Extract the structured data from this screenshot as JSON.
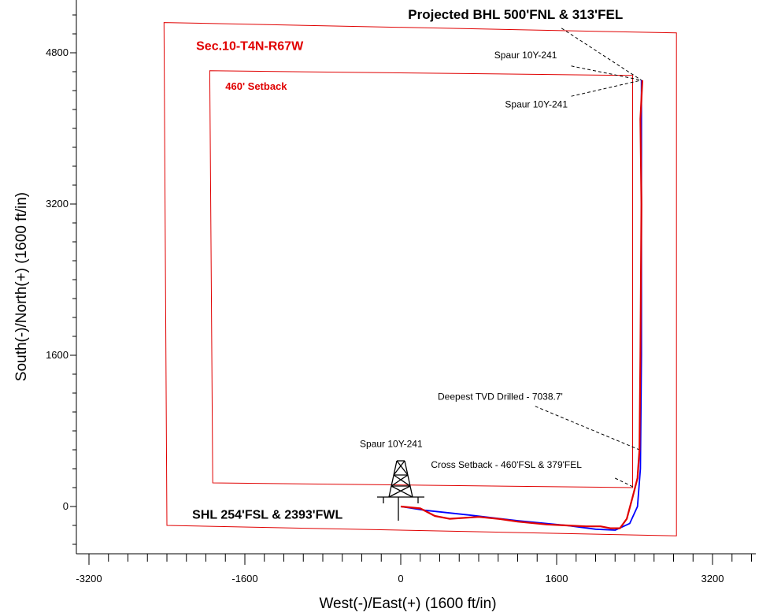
{
  "chart_data": {
    "type": "line",
    "title": "",
    "xlabel": "West(-)/East(+) (1600 ft/in)",
    "ylabel": "South(-)/North(+) (1600 ft/in)",
    "xlim": [
      -3300,
      3650
    ],
    "ylim": [
      -530,
      5350
    ],
    "x_ticks": [
      -3200,
      -1600,
      0,
      1600,
      3200
    ],
    "y_ticks": [
      0,
      1600,
      3200,
      4800
    ],
    "x_tick_labels": [
      "-3200",
      "-1600",
      "0",
      "1600",
      "3200"
    ],
    "y_tick_labels": [
      "0",
      "1600",
      "3200",
      "4800"
    ],
    "grid": false,
    "colors": {
      "plan": "#0000ff",
      "actual": "#e00000",
      "boundary": "#e00000",
      "text": "#000000"
    },
    "section_boundary": [
      [
        -2430,
        5120
      ],
      [
        2830,
        5010
      ],
      [
        2830,
        -310
      ],
      [
        -2400,
        -200
      ]
    ],
    "setback_boundary": [
      [
        -1960,
        4610
      ],
      [
        2380,
        4560
      ],
      [
        2380,
        200
      ],
      [
        -1930,
        250
      ]
    ],
    "series": [
      {
        "key": "plan",
        "values": [
          [
            0,
            0
          ],
          [
            250,
            -40
          ],
          [
            700,
            -90
          ],
          [
            1200,
            -150
          ],
          [
            1700,
            -200
          ],
          [
            2000,
            -240
          ],
          [
            2200,
            -250
          ],
          [
            2350,
            -180
          ],
          [
            2430,
            0
          ],
          [
            2460,
            400
          ],
          [
            2470,
            1600
          ],
          [
            2470,
            3200
          ],
          [
            2470,
            4510
          ]
        ]
      },
      {
        "key": "actual",
        "values": [
          [
            0,
            0
          ],
          [
            200,
            -20
          ],
          [
            350,
            -100
          ],
          [
            500,
            -130
          ],
          [
            800,
            -110
          ],
          [
            1000,
            -130
          ],
          [
            1200,
            -160
          ],
          [
            1500,
            -190
          ],
          [
            1700,
            -200
          ],
          [
            1900,
            -210
          ],
          [
            2050,
            -210
          ],
          [
            2150,
            -230
          ],
          [
            2250,
            -230
          ],
          [
            2320,
            -130
          ],
          [
            2380,
            100
          ],
          [
            2430,
            300
          ],
          [
            2450,
            600
          ],
          [
            2460,
            1600
          ],
          [
            2470,
            3200
          ],
          [
            2460,
            4100
          ],
          [
            2480,
            4510
          ]
        ]
      }
    ],
    "rig": {
      "x": 0,
      "y": 0
    },
    "annotations": [
      {
        "key": "bhl",
        "text": "Projected BHL 500'FNL & 313'FEL",
        "bold": true,
        "color": "#000000",
        "size": 17,
        "x": 75,
        "y": 5160
      },
      {
        "key": "sec",
        "text": "Sec.10-T4N-R67W",
        "bold": true,
        "color": "#e00000",
        "size": 16,
        "x": -2100,
        "y": 4830
      },
      {
        "key": "set",
        "text": "460' Setback",
        "bold": true,
        "color": "#e00000",
        "size": 13,
        "x": -1800,
        "y": 4410
      },
      {
        "key": "sp1",
        "text": "Spaur  10Y-241",
        "bold": false,
        "color": "#000000",
        "size": 12,
        "x": 960,
        "y": 4740
      },
      {
        "key": "sp2",
        "text": "Spaur  10Y-241",
        "bold": false,
        "color": "#000000",
        "size": 12,
        "x": 1070,
        "y": 4220
      },
      {
        "key": "sp3",
        "text": "Spaur  10Y-241",
        "bold": false,
        "color": "#000000",
        "size": 12,
        "x": -420,
        "y": 630
      },
      {
        "key": "tvd",
        "text": "Deepest TVD Drilled - 7038.7'",
        "bold": false,
        "color": "#000000",
        "size": 12,
        "x": 380,
        "y": 1130
      },
      {
        "key": "cross",
        "text": "Cross Setback - 460'FSL & 379'FEL",
        "bold": false,
        "color": "#000000",
        "size": 12,
        "x": 310,
        "y": 410
      },
      {
        "key": "shl",
        "text": "SHL 254'FSL & 2393'FWL",
        "bold": true,
        "color": "#000000",
        "size": 16,
        "x": -2140,
        "y": -130
      }
    ],
    "leaders": [
      [
        [
          1650,
          5060
        ],
        [
          2470,
          4510
        ]
      ],
      [
        [
          1750,
          4660
        ],
        [
          2470,
          4510
        ]
      ],
      [
        [
          1750,
          4340
        ],
        [
          2470,
          4510
        ]
      ],
      [
        [
          1380,
          1060
        ],
        [
          2450,
          600
        ]
      ],
      [
        [
          2200,
          300
        ],
        [
          2400,
          200
        ]
      ]
    ]
  }
}
